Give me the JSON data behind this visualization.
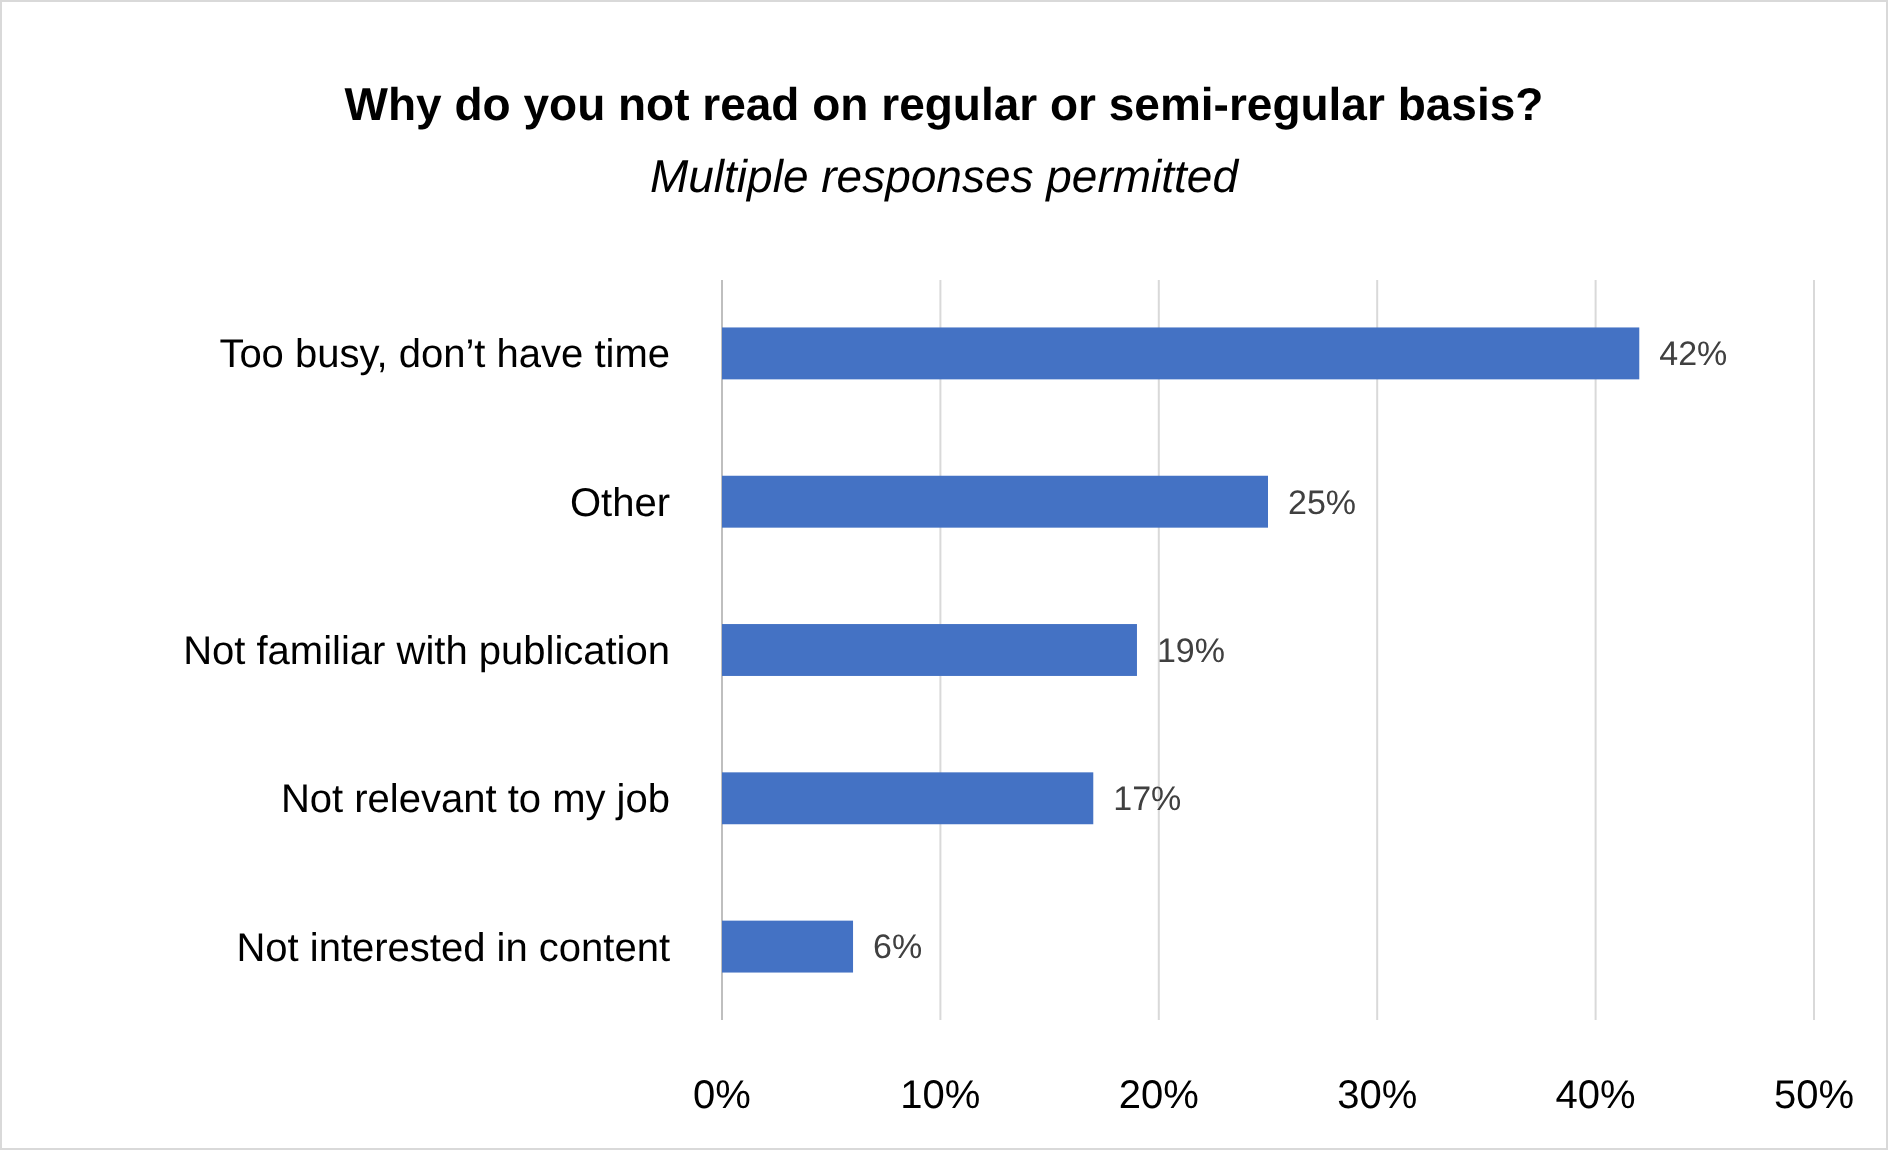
{
  "chart_data": {
    "type": "bar",
    "orientation": "horizontal",
    "title": "Why do you not read on regular or semi-regular basis?",
    "subtitle": "Multiple responses permitted",
    "categories": [
      "Too busy, don’t have time",
      "Other",
      "Not familiar with publication",
      "Not relevant to my job",
      "Not interested in content"
    ],
    "values": [
      42,
      25,
      19,
      17,
      6
    ],
    "color": "#4472c4",
    "value_labels": [
      "42%",
      "25%",
      "19%",
      "17%",
      "6%"
    ],
    "xlim": [
      0,
      50
    ],
    "xticks": [
      {
        "value": 0,
        "label": "0%"
      },
      {
        "value": 10,
        "label": "10%"
      },
      {
        "value": 20,
        "label": "20%"
      },
      {
        "value": 30,
        "label": "30%"
      },
      {
        "value": 40,
        "label": "40%"
      },
      {
        "value": 50,
        "label": "50%"
      }
    ],
    "grid": "x"
  }
}
